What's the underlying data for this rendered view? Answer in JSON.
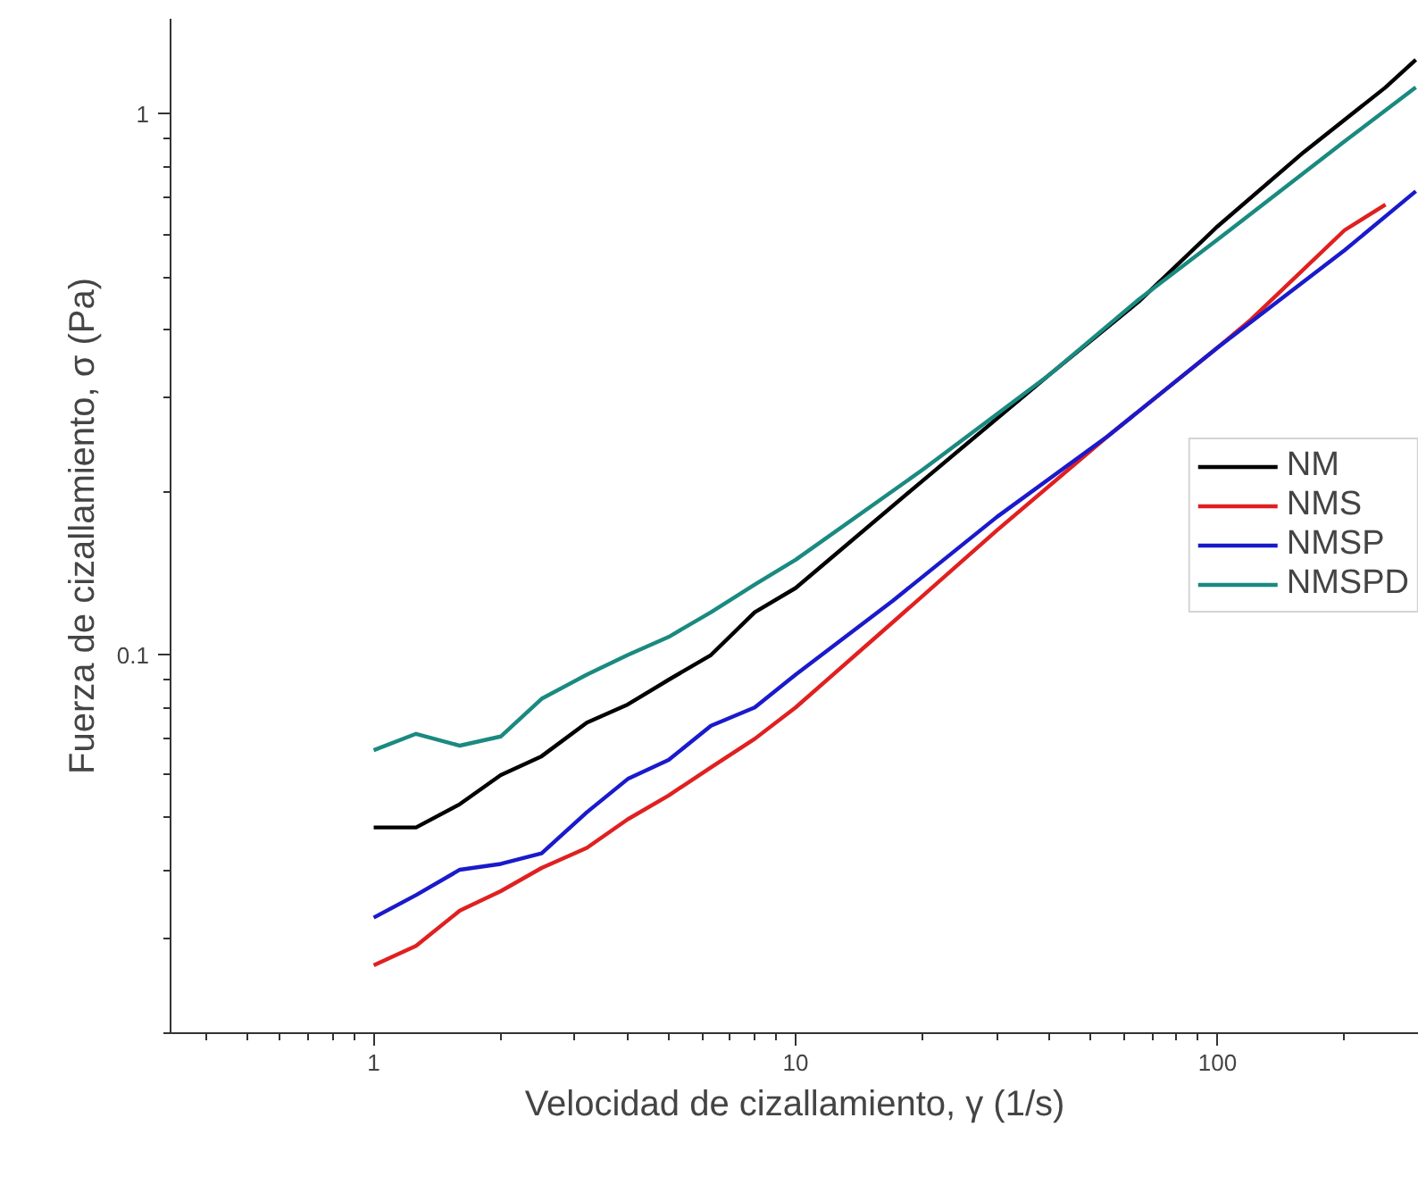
{
  "chart_data": {
    "type": "line",
    "xlabel": "Velocidad de cizallamiento, γ (1/s)",
    "ylabel": "Fuerza de cizallamiento, σ (Pa)",
    "log": "xy",
    "xlim": [
      0.33,
      300
    ],
    "ylim": [
      0.02,
      1.5
    ],
    "xticks": [
      1,
      10,
      100
    ],
    "yticks": [
      0.1,
      1
    ],
    "grid": false,
    "legend": "right",
    "marker": "none",
    "line_style": "solid",
    "series": [
      {
        "name": "NM",
        "color": "#000000",
        "x": [
          1,
          1.26,
          1.6,
          2,
          2.5,
          3.2,
          4,
          5,
          6.3,
          8,
          10,
          20,
          40,
          65,
          100,
          160,
          250,
          295
        ],
        "values": [
          0.048,
          0.048,
          0.053,
          0.06,
          0.065,
          0.075,
          0.081,
          0.09,
          0.1,
          0.12,
          0.133,
          0.21,
          0.33,
          0.45,
          0.62,
          0.85,
          1.12,
          1.26
        ]
      },
      {
        "name": "NMS",
        "color": "#e02020",
        "x": [
          1,
          1.26,
          1.6,
          2,
          2.5,
          3.2,
          4,
          5,
          6.3,
          8,
          10,
          17,
          30,
          55,
          100,
          120,
          200,
          250
        ],
        "values": [
          0.0267,
          0.029,
          0.0337,
          0.0366,
          0.0404,
          0.044,
          0.0497,
          0.055,
          0.062,
          0.07,
          0.08,
          0.115,
          0.17,
          0.254,
          0.37,
          0.417,
          0.61,
          0.68
        ]
      },
      {
        "name": "NMSP",
        "color": "#1a1acc",
        "x": [
          1,
          1.26,
          1.6,
          2,
          2.5,
          3.2,
          4,
          5,
          6.3,
          8,
          10,
          17,
          30,
          55,
          100,
          200,
          295
        ],
        "values": [
          0.0327,
          0.036,
          0.0401,
          0.0411,
          0.043,
          0.0512,
          0.059,
          0.064,
          0.074,
          0.08,
          0.092,
          0.126,
          0.18,
          0.254,
          0.37,
          0.56,
          0.72
        ]
      },
      {
        "name": "NMSPD",
        "color": "#1a8a80",
        "x": [
          1,
          1.26,
          1.6,
          2,
          2.5,
          3.2,
          4,
          5,
          6.3,
          8,
          10,
          20,
          40,
          65,
          100,
          200,
          295
        ],
        "values": [
          0.0667,
          0.0715,
          0.068,
          0.0707,
          0.083,
          0.092,
          0.1,
          0.108,
          0.12,
          0.135,
          0.15,
          0.22,
          0.33,
          0.454,
          0.586,
          0.89,
          1.12
        ]
      }
    ]
  }
}
